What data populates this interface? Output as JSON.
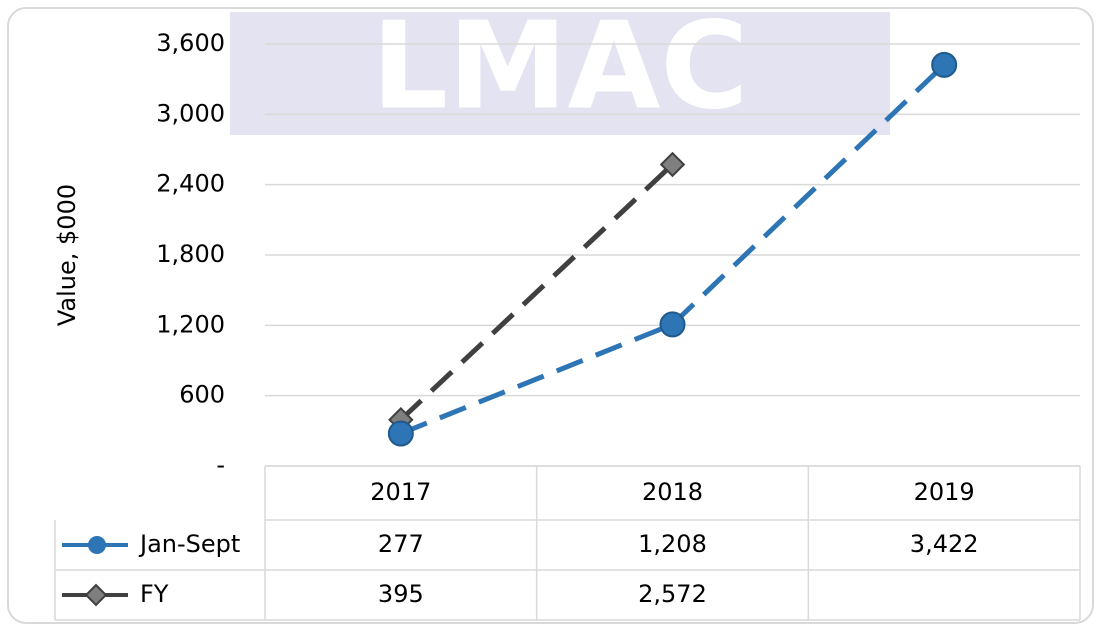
{
  "chart_data": {
    "type": "line",
    "watermark": "LMAC",
    "y_label": "Value, $000",
    "categories": [
      "2017",
      "2018",
      "2019"
    ],
    "series": [
      {
        "name": "Jan-Sept",
        "color": "#2e75b6",
        "marker": "circle",
        "values": [
          277,
          1208,
          3422
        ],
        "value_labels": [
          "277",
          "1,208",
          "3,422"
        ]
      },
      {
        "name": "FY",
        "color": "#404040",
        "marker": "diamond",
        "values": [
          395,
          2572,
          null
        ],
        "value_labels": [
          "395",
          "2,572",
          null
        ]
      }
    ],
    "ylim": [
      0,
      3600
    ],
    "yticks": [
      {
        "value": 0,
        "label": "-"
      },
      600,
      {
        "value": 1200,
        "label": "1,200"
      },
      {
        "value": 1800,
        "label": "1,800"
      },
      {
        "value": 2400,
        "label": "2,400"
      },
      {
        "value": 3000,
        "label": "3,000"
      },
      {
        "value": 3600,
        "label": "3,600"
      }
    ],
    "grid": true
  }
}
